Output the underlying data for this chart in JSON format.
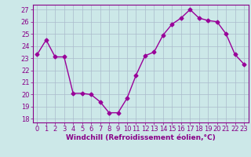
{
  "x": [
    0,
    1,
    2,
    3,
    4,
    5,
    6,
    7,
    8,
    9,
    10,
    11,
    12,
    13,
    14,
    15,
    16,
    17,
    18,
    19,
    20,
    21,
    22,
    23
  ],
  "y": [
    23.3,
    24.5,
    23.1,
    23.1,
    20.1,
    20.1,
    20.0,
    19.4,
    18.5,
    18.5,
    19.7,
    21.6,
    23.2,
    23.5,
    24.9,
    25.8,
    26.3,
    27.0,
    26.3,
    26.1,
    26.0,
    25.0,
    23.3,
    22.5
  ],
  "line_color": "#990099",
  "marker": "D",
  "markersize": 2.5,
  "linewidth": 1.0,
  "bg_color": "#cce8e8",
  "grid_color": "#aabbcc",
  "xlabel": "Windchill (Refroidissement éolien,°C)",
  "xlabel_fontsize": 6.5,
  "xtick_labels": [
    "0",
    "1",
    "2",
    "3",
    "4",
    "5",
    "6",
    "7",
    "8",
    "9",
    "10",
    "11",
    "12",
    "13",
    "14",
    "15",
    "16",
    "17",
    "18",
    "19",
    "20",
    "21",
    "22",
    "23"
  ],
  "ytick_labels": [
    "18",
    "19",
    "20",
    "21",
    "22",
    "23",
    "24",
    "25",
    "26",
    "27"
  ],
  "yticks": [
    18,
    19,
    20,
    21,
    22,
    23,
    24,
    25,
    26,
    27
  ],
  "ylim": [
    17.7,
    27.4
  ],
  "xlim": [
    -0.5,
    23.5
  ],
  "tick_fontsize": 6.0,
  "tick_color": "#880088",
  "axis_color": "#880088"
}
